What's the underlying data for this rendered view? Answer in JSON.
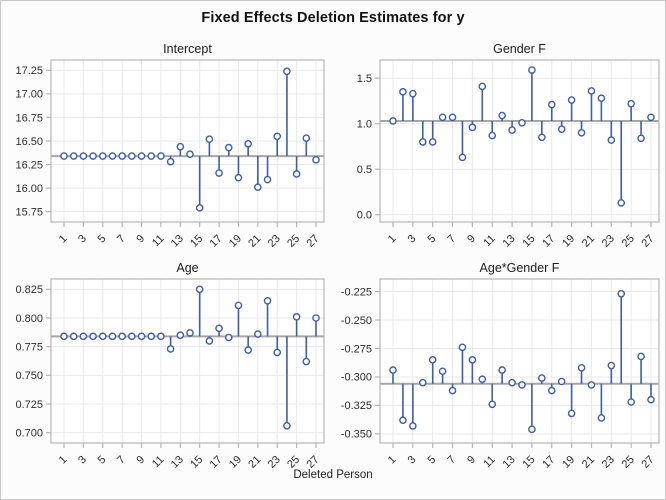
{
  "figure": {
    "title": "Fixed Effects Deletion Estimates for y",
    "xaxis_title": "Deleted Person"
  },
  "colors": {
    "needle": "#3c5da9",
    "marker_fill": "#ffffff",
    "reference": "#a6a6a6",
    "grid": "#e9e9e9",
    "frame": "#b6b6b6",
    "tick_text": "#2e2e2e",
    "figure_border": "#c9c9c9",
    "figure_bg": "#fcfcfc",
    "plot_bg": "#ffffff"
  },
  "chart_data": {
    "type": "scatter",
    "subtype": "needle-plot-panel",
    "title": "Fixed Effects Deletion Estimates for y",
    "xlabel": "Deleted Person",
    "x": [
      1,
      2,
      3,
      4,
      5,
      6,
      7,
      8,
      9,
      10,
      11,
      12,
      13,
      14,
      15,
      16,
      17,
      18,
      19,
      20,
      21,
      22,
      23,
      24,
      25,
      26,
      27
    ],
    "x_ticks": [
      "1",
      "3",
      "5",
      "7",
      "9",
      "11",
      "13",
      "15",
      "17",
      "19",
      "21",
      "23",
      "25",
      "27"
    ],
    "grid": true,
    "legend": "none",
    "panels": [
      {
        "title": "Intercept",
        "baseline": 16.34,
        "ylim": [
          15.64,
          17.36
        ],
        "ytick_values": [
          17.25,
          17.0,
          16.75,
          16.5,
          16.25,
          16.0,
          15.75
        ],
        "ytick_labels": [
          "17.25",
          "17.00",
          "16.75",
          "16.50",
          "16.25",
          "16.00",
          "15.75"
        ],
        "values": [
          16.34,
          16.34,
          16.34,
          16.34,
          16.34,
          16.34,
          16.34,
          16.34,
          16.34,
          16.34,
          16.34,
          16.28,
          16.44,
          16.36,
          15.79,
          16.52,
          16.16,
          16.43,
          16.11,
          16.47,
          16.01,
          16.09,
          16.55,
          17.24,
          16.15,
          16.53,
          16.3
        ]
      },
      {
        "title": "Gender F",
        "baseline": 1.03,
        "ylim": [
          -0.08,
          1.7
        ],
        "ytick_values": [
          1.5,
          1.0,
          0.5,
          0.0
        ],
        "ytick_labels": [
          "1.5",
          "1.0",
          "0.5",
          "0.0"
        ],
        "values": [
          1.03,
          1.35,
          1.33,
          0.8,
          0.8,
          1.07,
          1.07,
          0.63,
          0.96,
          1.41,
          0.87,
          1.09,
          0.93,
          1.01,
          1.59,
          0.85,
          1.21,
          0.94,
          1.26,
          0.9,
          1.36,
          1.28,
          0.82,
          0.13,
          1.22,
          0.84,
          1.07
        ]
      },
      {
        "title": "Age",
        "baseline": 0.784,
        "ylim": [
          0.691,
          0.834
        ],
        "ytick_values": [
          0.825,
          0.8,
          0.775,
          0.75,
          0.725,
          0.7
        ],
        "ytick_labels": [
          "0.825",
          "0.800",
          "0.775",
          "0.750",
          "0.725",
          "0.700"
        ],
        "values": [
          0.784,
          0.784,
          0.784,
          0.784,
          0.784,
          0.784,
          0.784,
          0.784,
          0.784,
          0.784,
          0.784,
          0.773,
          0.785,
          0.787,
          0.825,
          0.78,
          0.791,
          0.783,
          0.811,
          0.772,
          0.786,
          0.815,
          0.77,
          0.706,
          0.801,
          0.762,
          0.8
        ]
      },
      {
        "title": "Age*Gender F",
        "baseline": -0.306,
        "ylim": [
          -0.358,
          -0.214
        ],
        "ytick_values": [
          -0.225,
          -0.25,
          -0.275,
          -0.3,
          -0.325,
          -0.35
        ],
        "ytick_labels": [
          "-0.225",
          "-0.250",
          "-0.275",
          "-0.300",
          "-0.325",
          "-0.350"
        ],
        "values": [
          -0.294,
          -0.338,
          -0.343,
          -0.305,
          -0.285,
          -0.295,
          -0.312,
          -0.274,
          -0.285,
          -0.302,
          -0.324,
          -0.294,
          -0.305,
          -0.307,
          -0.346,
          -0.301,
          -0.312,
          -0.304,
          -0.332,
          -0.292,
          -0.307,
          -0.336,
          -0.29,
          -0.227,
          -0.322,
          -0.282,
          -0.32
        ]
      }
    ]
  }
}
